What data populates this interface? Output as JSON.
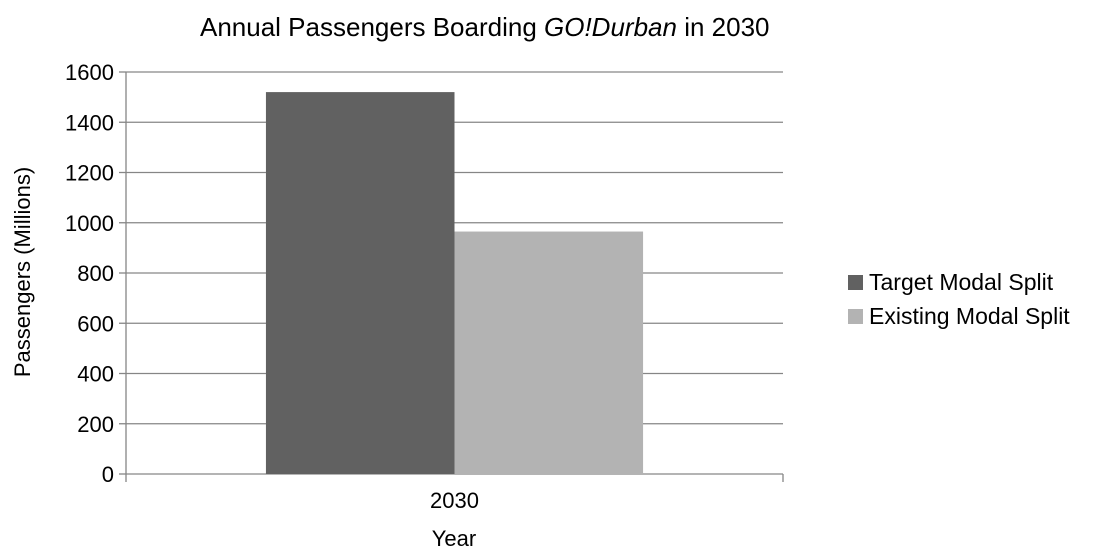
{
  "chart_data": {
    "type": "bar",
    "title": {
      "prefix": "Annual Passengers Boarding ",
      "italic": "GO!Durban",
      "suffix": " in 2030"
    },
    "xlabel": "Year",
    "ylabel": "Passengers (Millions)",
    "categories": [
      "2030"
    ],
    "ylim": [
      0,
      1600
    ],
    "yticks": [
      0,
      200,
      400,
      600,
      800,
      1000,
      1200,
      1400,
      1600
    ],
    "grid": true,
    "legend_position": "right",
    "series": [
      {
        "name": "Target Modal Split",
        "color": "#616161",
        "values": [
          1520
        ]
      },
      {
        "name": "Existing Modal Split",
        "color": "#b3b3b3",
        "values": [
          965
        ]
      }
    ]
  }
}
